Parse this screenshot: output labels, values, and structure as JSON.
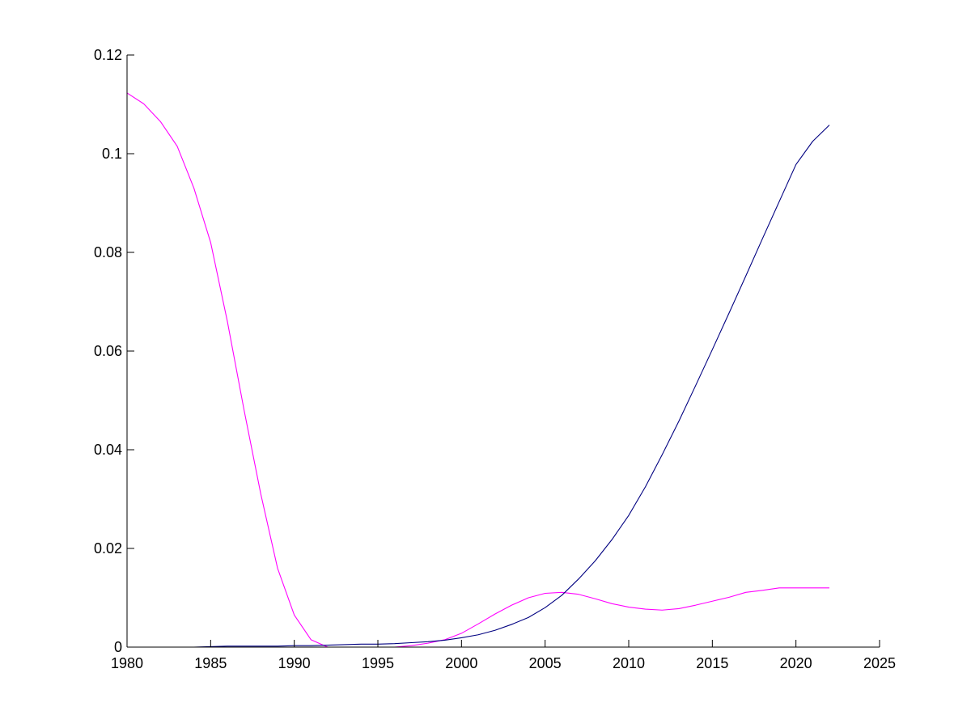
{
  "chart_data": {
    "type": "line",
    "title": "",
    "xlabel": "",
    "ylabel": "",
    "xlim": [
      1980,
      2025
    ],
    "ylim": [
      0,
      0.12
    ],
    "xticks": [
      1980,
      1985,
      1990,
      1995,
      2000,
      2005,
      2010,
      2015,
      2020,
      2025
    ],
    "yticks": [
      0,
      0.02,
      0.04,
      0.06,
      0.08,
      0.1,
      0.12
    ],
    "xtick_labels": [
      "1980",
      "1985",
      "1990",
      "1995",
      "2000",
      "2005",
      "2010",
      "2015",
      "2020",
      "2025"
    ],
    "ytick_labels": [
      "0",
      "0.02",
      "0.04",
      "0.06",
      "0.08",
      "0.1",
      "0.12"
    ],
    "grid": false,
    "legend": "none",
    "series": [
      {
        "color": "#ff00ff",
        "x": [
          1980,
          1981,
          1982,
          1983,
          1984,
          1985,
          1986,
          1987,
          1988,
          1989,
          1990,
          1991,
          1992,
          1993,
          1994,
          1995,
          1996,
          1997,
          1998,
          1999,
          2000,
          2001,
          2002,
          2003,
          2004,
          2005,
          2006,
          2007,
          2008,
          2009,
          2010,
          2011,
          2012,
          2013,
          2014,
          2015,
          2016,
          2017,
          2018,
          2019,
          2020,
          2021,
          2022
        ],
        "y": [
          0.1123,
          0.1101,
          0.1065,
          0.1015,
          0.093,
          0.082,
          0.066,
          0.048,
          0.031,
          0.016,
          0.0065,
          0.0015,
          0.0,
          0.0,
          0.0,
          0.0,
          0.0,
          0.0003,
          0.0008,
          0.0015,
          0.0028,
          0.0047,
          0.0067,
          0.0085,
          0.01,
          0.0109,
          0.0111,
          0.0107,
          0.0098,
          0.0088,
          0.0081,
          0.0077,
          0.0075,
          0.0078,
          0.0085,
          0.0093,
          0.0101,
          0.0111,
          0.0115,
          0.012,
          0.012,
          0.012,
          0.012
        ]
      },
      {
        "color": "#000080",
        "x": [
          1980,
          1981,
          1982,
          1983,
          1984,
          1985,
          1986,
          1987,
          1988,
          1989,
          1990,
          1991,
          1992,
          1993,
          1994,
          1995,
          1996,
          1997,
          1998,
          1999,
          2000,
          2001,
          2002,
          2003,
          2004,
          2005,
          2006,
          2007,
          2008,
          2009,
          2010,
          2011,
          2012,
          2013,
          2014,
          2015,
          2016,
          2017,
          2018,
          2019,
          2020,
          2021,
          2022
        ],
        "y": [
          0.0,
          0.0,
          0.0,
          0.0,
          0.0,
          0.0001,
          0.0002,
          0.0002,
          0.0002,
          0.0002,
          0.0003,
          0.0003,
          0.0004,
          0.0005,
          0.0006,
          0.0006,
          0.0007,
          0.0009,
          0.0011,
          0.0014,
          0.0019,
          0.0025,
          0.0034,
          0.0046,
          0.006,
          0.008,
          0.0105,
          0.0138,
          0.0175,
          0.0218,
          0.0267,
          0.0325,
          0.039,
          0.0458,
          0.053,
          0.0603,
          0.0677,
          0.0752,
          0.0828,
          0.0903,
          0.0978,
          0.1025,
          0.1058
        ]
      }
    ]
  }
}
